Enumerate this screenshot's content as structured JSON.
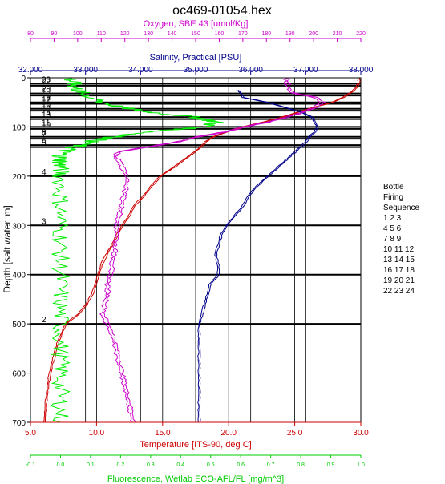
{
  "chart_data": {
    "type": "line",
    "title": "oc469-01054.hex",
    "y_axis": {
      "label": "Depth [salt water, m]",
      "range": [
        0,
        700
      ],
      "ticks": [
        0,
        100,
        200,
        300,
        400,
        500,
        600,
        700
      ],
      "inverted": true
    },
    "x_axes": {
      "oxygen": {
        "label": "Oxygen, SBE 43 [umol/Kg]",
        "color": "#cc00cc",
        "range": [
          80,
          220
        ],
        "ticks": [
          80,
          90,
          100,
          110,
          120,
          130,
          140,
          150,
          160,
          170,
          180,
          190,
          200,
          210,
          220
        ]
      },
      "salinity": {
        "label": "Salinity, Practical [PSU]",
        "color": "#00008b",
        "range": [
          32.0,
          38.0
        ],
        "ticks": [
          "32.000",
          "33.000",
          "34.000",
          "35.000",
          "36.000",
          "37.000",
          "38.000"
        ]
      },
      "temperature": {
        "label": "Temperature [ITS-90, deg C]",
        "color": "#cc0000",
        "range": [
          5.0,
          30.0
        ],
        "ticks": [
          "5.0",
          "10.0",
          "15.0",
          "20.0",
          "25.0",
          "30.0"
        ]
      },
      "fluorescence": {
        "label": "Fluorescence, Wetlab ECO-AFL/FL [mg/m^3]",
        "color": "#00cc00",
        "range": [
          -0.1,
          1.0
        ],
        "ticks": [
          "-0.1",
          "0.0",
          "0.1",
          "0.2",
          "0.3",
          "0.4",
          "0.5",
          "0.6",
          "0.7",
          "0.8",
          "0.9",
          "1.0"
        ]
      }
    },
    "grid": true,
    "bottle_lines": [
      {
        "depth": 12,
        "label": "23"
      },
      {
        "depth": 16,
        "label": "22"
      },
      {
        "depth": 32,
        "label": "20"
      },
      {
        "depth": 36,
        "label": "19"
      },
      {
        "depth": 50,
        "label": "18"
      },
      {
        "depth": 53,
        "label": "17"
      },
      {
        "depth": 63,
        "label": "16"
      },
      {
        "depth": 67,
        "label": "15"
      },
      {
        "depth": 80,
        "label": "14"
      },
      {
        "depth": 84,
        "label": "13"
      },
      {
        "depth": 100,
        "label": "11"
      },
      {
        "depth": 104,
        "label": "10"
      },
      {
        "depth": 120,
        "label": "8"
      },
      {
        "depth": 124,
        "label": "7"
      },
      {
        "depth": 137,
        "label": "6"
      },
      {
        "depth": 141,
        "label": "5"
      },
      {
        "depth": 200,
        "label": "4"
      },
      {
        "depth": 300,
        "label": "3"
      },
      {
        "depth": 400,
        "label": ""
      },
      {
        "depth": 500,
        "label": "2"
      }
    ],
    "legend": {
      "position": "right",
      "title_lines": [
        "Bottle",
        "Firing",
        "Sequence"
      ],
      "rows": [
        "1  2  3",
        "4  5  6",
        "7  8  9",
        "10 11 12",
        "13 14 15",
        "16 17 18",
        "19 20 21",
        "22 23 24"
      ]
    },
    "series": [
      {
        "name": "Temperature",
        "axis": "temperature",
        "color": "#cc0000",
        "depth": [
          0,
          10,
          20,
          30,
          40,
          50,
          60,
          70,
          80,
          90,
          100,
          110,
          120,
          130,
          140,
          150,
          160,
          170,
          180,
          190,
          200,
          220,
          240,
          260,
          280,
          300,
          320,
          340,
          360,
          380,
          400,
          420,
          440,
          460,
          480,
          500,
          520,
          540,
          560,
          580,
          600,
          620,
          640,
          660,
          680,
          700
        ],
        "values": [
          29.8,
          29.8,
          29.6,
          29.2,
          28.6,
          27.8,
          26.4,
          25.2,
          24.0,
          22.6,
          21.0,
          19.8,
          18.8,
          18.2,
          17.9,
          17.4,
          16.9,
          16.4,
          15.9,
          15.3,
          14.8,
          14.1,
          13.5,
          12.8,
          12.4,
          11.9,
          11.5,
          11.1,
          10.7,
          10.3,
          10.1,
          9.9,
          9.6,
          9.2,
          8.6,
          7.6,
          7.3,
          7.0,
          6.8,
          6.6,
          6.4,
          6.3,
          6.2,
          6.1,
          6.05,
          6.0
        ]
      },
      {
        "name": "Salinity",
        "axis": "salinity",
        "color": "#00008b",
        "depth": [
          25,
          30,
          40,
          50,
          60,
          70,
          80,
          90,
          100,
          110,
          120,
          130,
          140,
          150,
          160,
          170,
          180,
          190,
          200,
          220,
          240,
          260,
          280,
          300,
          320,
          340,
          360,
          380,
          400,
          420,
          440,
          460,
          480,
          500,
          520,
          540,
          560,
          580,
          600,
          620,
          640,
          660,
          680,
          700
        ],
        "values": [
          35.75,
          35.8,
          35.85,
          36.3,
          36.6,
          36.9,
          37.1,
          37.15,
          37.2,
          37.15,
          37.05,
          37.0,
          36.9,
          36.8,
          36.7,
          36.6,
          36.5,
          36.4,
          36.3,
          36.1,
          35.95,
          35.85,
          35.7,
          35.55,
          35.45,
          35.4,
          35.35,
          35.4,
          35.4,
          35.25,
          35.2,
          35.15,
          35.1,
          35.05,
          35.05,
          35.05,
          35.05,
          35.05,
          35.05,
          35.05,
          35.05,
          35.05,
          35.05,
          35.05
        ]
      },
      {
        "name": "Oxygen",
        "axis": "oxygen",
        "color": "#cc00cc",
        "depth": [
          0,
          10,
          20,
          30,
          40,
          50,
          60,
          70,
          80,
          90,
          100,
          110,
          120,
          130,
          140,
          150,
          160,
          170,
          180,
          200,
          220,
          240,
          260,
          280,
          300,
          320,
          340,
          360,
          380,
          400,
          420,
          440,
          460,
          480,
          500,
          520,
          540,
          560,
          580,
          600,
          620,
          640,
          660,
          680,
          700
        ],
        "values": [
          188,
          188,
          189,
          190,
          200,
          203,
          200,
          195,
          188,
          180,
          170,
          162,
          150,
          142,
          130,
          117,
          115,
          117,
          118,
          120,
          120,
          119,
          118,
          117,
          116,
          116,
          115,
          115,
          114,
          113,
          112,
          112,
          111,
          110,
          112,
          114,
          115,
          116,
          117,
          118,
          119,
          120,
          121,
          122,
          123
        ]
      },
      {
        "name": "Fluorescence",
        "axis": "fluorescence",
        "color": "#00ee00",
        "depth": [
          0,
          10,
          20,
          30,
          40,
          50,
          60,
          70,
          80,
          90,
          100,
          110,
          120,
          130,
          140,
          150,
          160,
          170,
          180,
          200,
          250,
          300,
          350,
          400,
          450,
          500,
          550,
          600,
          650,
          700
        ],
        "values": [
          0.03,
          0.04,
          0.05,
          0.07,
          0.1,
          0.14,
          0.2,
          0.3,
          0.45,
          0.52,
          0.48,
          0.3,
          0.18,
          0.1,
          0.05,
          0.01,
          0.0,
          0.0,
          0.0,
          0.0,
          0.0,
          0.0,
          0.0,
          0.0,
          0.0,
          0.0,
          0.0,
          0.0,
          0.0,
          0.0
        ]
      }
    ]
  }
}
